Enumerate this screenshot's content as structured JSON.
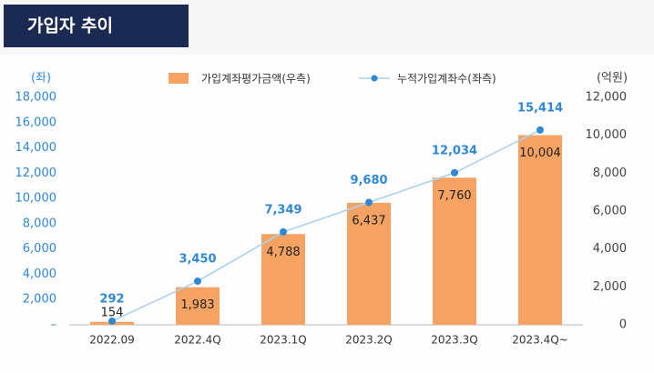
{
  "header": {
    "title": "가입자 추이"
  },
  "chart_data": {
    "type": "combo",
    "categories": [
      "2022.09",
      "2022.4Q",
      "2023.1Q",
      "2023.2Q",
      "2023.3Q",
      "2023.4Q~"
    ],
    "y_label": "(좌)",
    "y2_label": "(억원)",
    "ylim": [
      0,
      18000
    ],
    "yticks": [
      {
        "value": 0,
        "label": "–"
      },
      {
        "value": 2000,
        "label": "2,000"
      },
      {
        "value": 4000,
        "label": "4,000"
      },
      {
        "value": 6000,
        "label": "6,000"
      },
      {
        "value": 8000,
        "label": "8,000"
      },
      {
        "value": 10000,
        "label": "10,000"
      },
      {
        "value": 12000,
        "label": "12,000"
      },
      {
        "value": 14000,
        "label": "14,000"
      },
      {
        "value": 16000,
        "label": "16,000"
      },
      {
        "value": 18000,
        "label": "18,000"
      }
    ],
    "y2lim": [
      0,
      12000
    ],
    "y2ticks": [
      0,
      {
        "value": 2000,
        "label": "2,000"
      },
      {
        "value": 4000,
        "label": "4,000"
      },
      {
        "value": 6000,
        "label": "6,000"
      },
      {
        "value": 8000,
        "label": "8,000"
      },
      {
        "value": 10000,
        "label": "10,000"
      },
      {
        "value": 12000,
        "label": "12,000"
      }
    ],
    "series": [
      {
        "name": "가입계좌평가금액(우측)",
        "type": "bar",
        "axis": "y2",
        "color": "#f5a263",
        "values": [
          154,
          1983,
          4788,
          6437,
          7760,
          10004
        ],
        "value_labels": [
          "154",
          "1,983",
          "4,788",
          "6,437",
          "7,760",
          "10,004"
        ]
      },
      {
        "name": "누적가입계좌수(좌측)",
        "type": "line",
        "color": "#2f88d3",
        "values": [
          292,
          3450,
          7349,
          9680,
          12034,
          15414
        ],
        "value_labels": [
          "292",
          "3,450",
          "7,349",
          "9,680",
          "12,034",
          "15,414"
        ]
      }
    ]
  }
}
